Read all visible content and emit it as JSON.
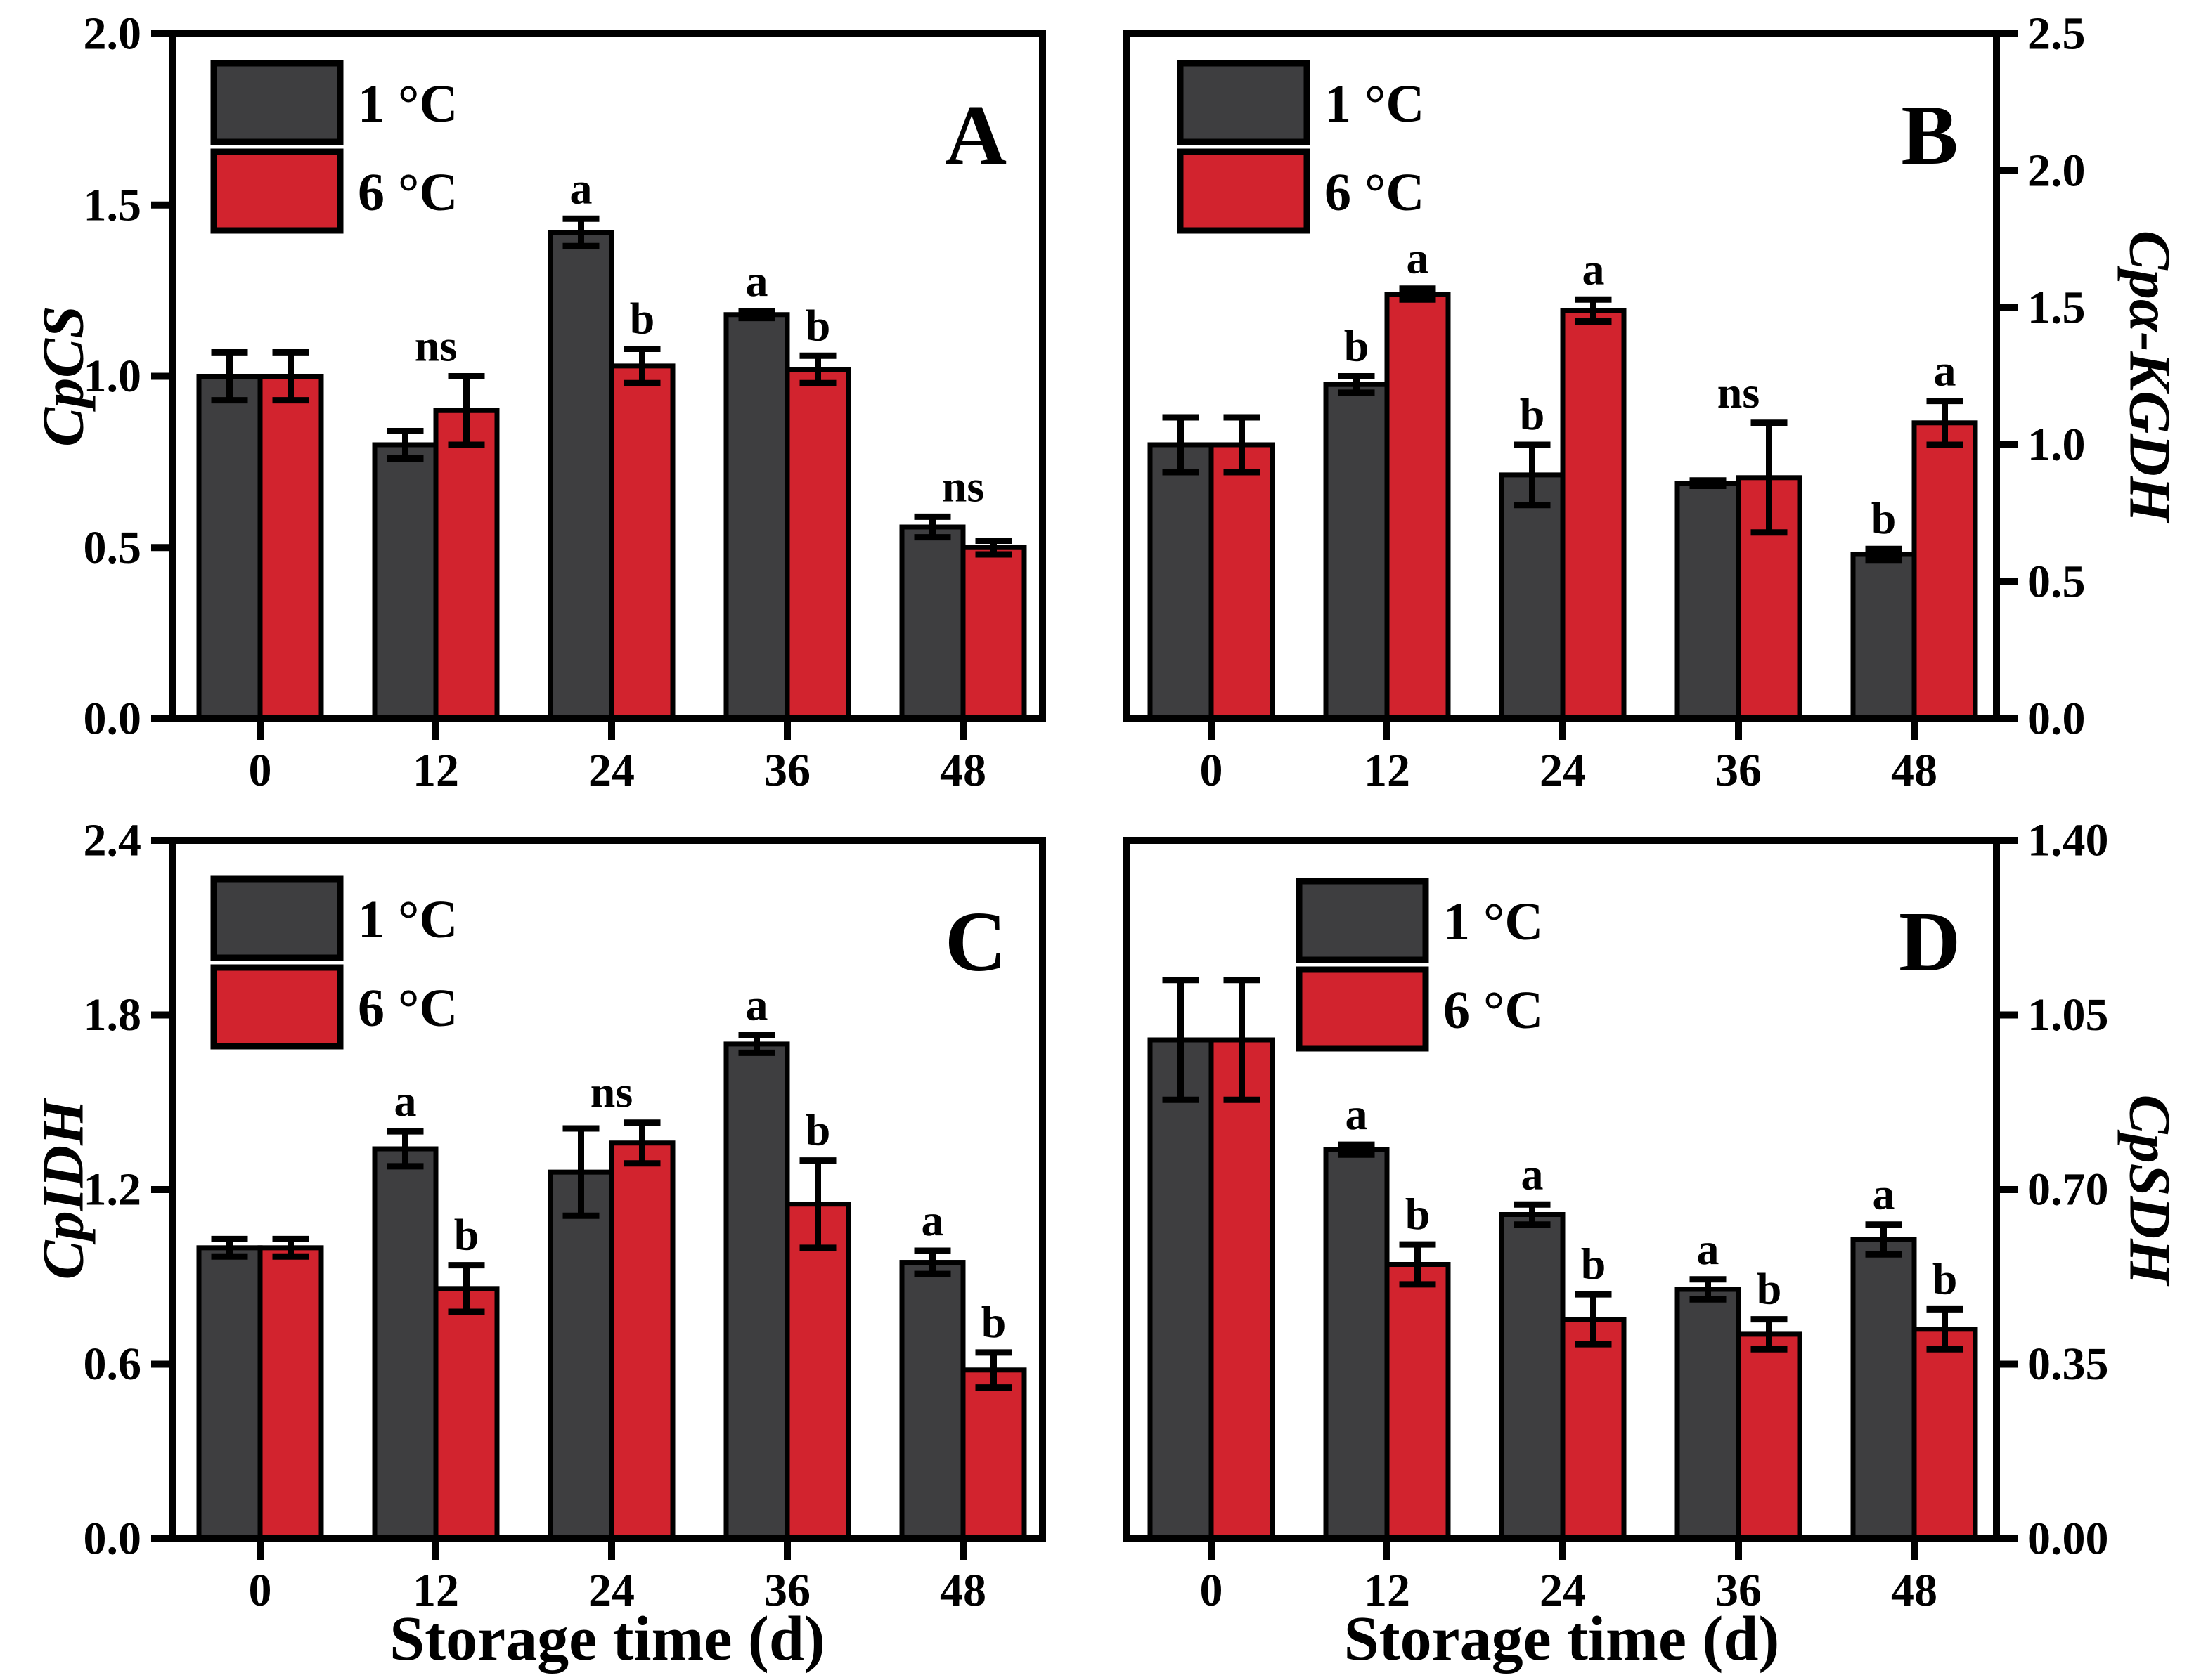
{
  "figure": {
    "legend": {
      "series1": "1 °C",
      "series2": "6 °C"
    },
    "colors": {
      "series1": "#3E3E40",
      "series2": "#D2232E",
      "error": "#000000",
      "background": "#FFFFFF"
    }
  },
  "chart_data": [
    {
      "type": "bar",
      "panel": "A",
      "ylabel": "CpCS",
      "ylabel_side": "left",
      "xlabel": "",
      "ylim": [
        0,
        2.0
      ],
      "yticks": [
        "2.0",
        "1.5",
        "1.0",
        "0.5",
        "0.0"
      ],
      "categories": [
        "0",
        "12",
        "24",
        "36",
        "48"
      ],
      "legend_position": "top-left",
      "grid": false,
      "series": [
        {
          "name": "1 °C",
          "values": [
            1.0,
            0.8,
            1.42,
            1.18,
            0.56
          ],
          "errors": [
            0.07,
            0.04,
            0.04,
            0.01,
            0.03
          ],
          "sig": [
            "",
            "",
            "a",
            "a",
            ""
          ]
        },
        {
          "name": "6 °C",
          "values": [
            1.0,
            0.9,
            1.03,
            1.02,
            0.5
          ],
          "errors": [
            0.07,
            0.1,
            0.05,
            0.04,
            0.02
          ],
          "sig": [
            "",
            "",
            "b",
            "b",
            ""
          ]
        }
      ],
      "group_sig": [
        "",
        "ns",
        "",
        "",
        "ns"
      ]
    },
    {
      "type": "bar",
      "panel": "B",
      "ylabel": "Cpα-KGDH",
      "ylabel_side": "right",
      "xlabel": "",
      "ylim": [
        0,
        2.5
      ],
      "yticks": [
        "2.5",
        "2.0",
        "1.5",
        "1.0",
        "0.5",
        "0.0"
      ],
      "categories": [
        "0",
        "12",
        "24",
        "36",
        "48"
      ],
      "legend_position": "top-left",
      "grid": false,
      "series": [
        {
          "name": "1 °C",
          "values": [
            1.0,
            1.22,
            0.89,
            0.86,
            0.6
          ],
          "errors": [
            0.1,
            0.03,
            0.11,
            0.01,
            0.02
          ],
          "sig": [
            "",
            "b",
            "b",
            "",
            "b"
          ]
        },
        {
          "name": "6 °C",
          "values": [
            1.0,
            1.55,
            1.49,
            0.88,
            1.08
          ],
          "errors": [
            0.1,
            0.02,
            0.04,
            0.2,
            0.08
          ],
          "sig": [
            "",
            "a",
            "a",
            "",
            "a"
          ]
        }
      ],
      "group_sig": [
        "",
        "",
        "",
        "ns",
        ""
      ]
    },
    {
      "type": "bar",
      "panel": "C",
      "ylabel": "CpIDH",
      "ylabel_side": "left",
      "xlabel": "Storage time (d)",
      "ylim": [
        0,
        2.4
      ],
      "yticks": [
        "2.4",
        "1.8",
        "1.2",
        "0.6",
        "0.0"
      ],
      "categories": [
        "0",
        "12",
        "24",
        "36",
        "48"
      ],
      "legend_position": "top-left",
      "grid": false,
      "series": [
        {
          "name": "1 °C",
          "values": [
            1.0,
            1.34,
            1.26,
            1.7,
            0.95
          ],
          "errors": [
            0.03,
            0.06,
            0.15,
            0.03,
            0.04
          ],
          "sig": [
            "",
            "a",
            "",
            "a",
            "a"
          ]
        },
        {
          "name": "6 °C",
          "values": [
            1.0,
            0.86,
            1.36,
            1.15,
            0.58
          ],
          "errors": [
            0.03,
            0.08,
            0.07,
            0.15,
            0.06
          ],
          "sig": [
            "",
            "b",
            "",
            "b",
            "b"
          ]
        }
      ],
      "group_sig": [
        "",
        "",
        "ns",
        "",
        ""
      ]
    },
    {
      "type": "bar",
      "panel": "D",
      "ylabel": "CpSDH",
      "ylabel_side": "right",
      "xlabel": "Storage time (d)",
      "ylim": [
        0,
        1.4
      ],
      "yticks": [
        "1.40",
        "1.05",
        "0.70",
        "0.35",
        "0.00"
      ],
      "categories": [
        "0",
        "12",
        "24",
        "36",
        "48"
      ],
      "legend_position": "top-left",
      "grid": false,
      "series": [
        {
          "name": "1 °C",
          "values": [
            1.0,
            0.78,
            0.65,
            0.5,
            0.6
          ],
          "errors": [
            0.12,
            0.01,
            0.02,
            0.02,
            0.03
          ],
          "sig": [
            "",
            "a",
            "a",
            "a",
            "a"
          ]
        },
        {
          "name": "6 °C",
          "values": [
            1.0,
            0.55,
            0.44,
            0.41,
            0.42
          ],
          "errors": [
            0.12,
            0.04,
            0.05,
            0.03,
            0.04
          ],
          "sig": [
            "",
            "b",
            "b",
            "b",
            "b"
          ]
        }
      ],
      "group_sig": [
        "",
        "",
        "",
        "",
        ""
      ]
    }
  ]
}
